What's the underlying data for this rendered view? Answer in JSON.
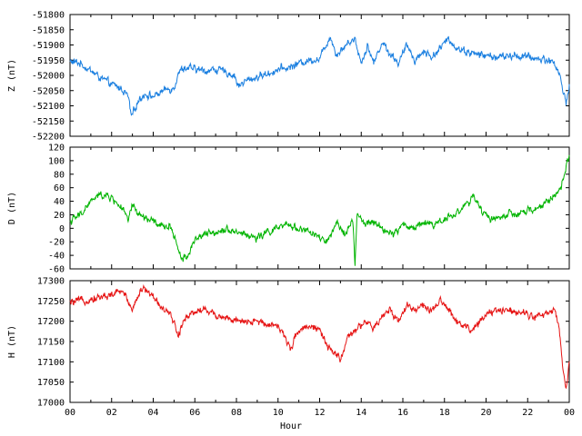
{
  "chart_data": [
    {
      "type": "line",
      "ylabel": "Z (nT)",
      "color": "#1a7fe0",
      "ylim": [
        -52200,
        -51800
      ],
      "yticks": [
        -52200,
        -52150,
        -52100,
        -52050,
        -52000,
        -51950,
        -51900,
        -51850,
        -51800
      ],
      "xlim": [
        0,
        24
      ],
      "x": [
        0,
        0.5,
        1,
        1.5,
        2,
        2.5,
        2.8,
        2.95,
        3.05,
        3.3,
        3.6,
        4,
        4.5,
        5,
        5.2,
        5.5,
        6,
        6.5,
        7,
        7.5,
        7.9,
        8.1,
        8.4,
        9,
        9.5,
        10,
        10.5,
        11,
        11.5,
        12,
        12.3,
        12.5,
        12.8,
        13,
        13.4,
        13.7,
        14,
        14.3,
        14.6,
        15,
        15.4,
        15.8,
        16.2,
        16.6,
        17,
        17.4,
        17.8,
        18.2,
        18.6,
        19,
        19.5,
        20,
        20.5,
        21,
        21.5,
        22,
        22.5,
        23,
        23.3,
        23.5,
        23.7,
        23.85,
        24
      ],
      "y": [
        -51955,
        -51960,
        -51985,
        -52010,
        -52030,
        -52045,
        -52070,
        -52140,
        -52120,
        -52080,
        -52060,
        -52070,
        -52050,
        -52040,
        -51990,
        -51975,
        -51980,
        -51985,
        -51980,
        -51990,
        -52000,
        -52035,
        -52020,
        -52005,
        -51995,
        -51980,
        -51975,
        -51960,
        -51950,
        -51945,
        -51900,
        -51870,
        -51930,
        -51920,
        -51890,
        -51880,
        -51960,
        -51900,
        -51960,
        -51890,
        -51930,
        -51960,
        -51900,
        -51950,
        -51920,
        -51940,
        -51910,
        -51880,
        -51910,
        -51920,
        -51930,
        -51935,
        -51940,
        -51938,
        -51935,
        -51940,
        -51945,
        -51950,
        -51960,
        -51990,
        -52050,
        -52090,
        -52030
      ]
    },
    {
      "type": "line",
      "ylabel": "D (nT)",
      "color": "#00b400",
      "ylim": [
        -60,
        120
      ],
      "yticks": [
        -60,
        -40,
        -20,
        0,
        20,
        40,
        60,
        80,
        100,
        120
      ],
      "xlim": [
        0,
        24
      ],
      "x": [
        0,
        0.5,
        1,
        1.5,
        2,
        2.5,
        2.8,
        3,
        3.3,
        3.6,
        4,
        4.5,
        4.8,
        5,
        5.3,
        5.6,
        6,
        6.5,
        7,
        7.5,
        8,
        8.5,
        9,
        9.5,
        10,
        10.5,
        11,
        11.5,
        12,
        12.4,
        12.8,
        13.2,
        13.6,
        13.7,
        13.8,
        14.2,
        14.5,
        15,
        15.5,
        16,
        16.5,
        17,
        17.5,
        18,
        18.5,
        19,
        19.4,
        19.8,
        20.2,
        20.6,
        21,
        21.5,
        22,
        22.5,
        23,
        23.3,
        23.6,
        23.8,
        24
      ],
      "y": [
        10,
        20,
        40,
        50,
        45,
        30,
        10,
        35,
        20,
        15,
        10,
        0,
        5,
        -10,
        -40,
        -45,
        -15,
        -10,
        -5,
        0,
        -5,
        -10,
        -15,
        -5,
        0,
        5,
        0,
        -5,
        -15,
        -20,
        5,
        -5,
        10,
        -55,
        20,
        5,
        10,
        0,
        -10,
        5,
        0,
        10,
        5,
        15,
        20,
        35,
        45,
        25,
        15,
        15,
        20,
        20,
        25,
        30,
        40,
        50,
        60,
        80,
        110
      ]
    },
    {
      "type": "line",
      "ylabel": "H (nT)",
      "xlabel": "Hour",
      "color": "#e61414",
      "ylim": [
        17000,
        17300
      ],
      "yticks": [
        17000,
        17050,
        17100,
        17150,
        17200,
        17250,
        17300
      ],
      "xlim": [
        0,
        24
      ],
      "xticks": [
        "00",
        "02",
        "04",
        "06",
        "08",
        "10",
        "12",
        "14",
        "16",
        "18",
        "20",
        "22",
        "00"
      ],
      "x": [
        0,
        0.5,
        1,
        1.5,
        2,
        2.5,
        2.8,
        3,
        3.3,
        3.6,
        4,
        4.5,
        5,
        5.2,
        5.5,
        6,
        6.5,
        7,
        7.5,
        8,
        8.5,
        9,
        9.5,
        10,
        10.3,
        10.6,
        11,
        11.5,
        12,
        12.3,
        12.6,
        13,
        13.4,
        13.8,
        14.2,
        14.6,
        15,
        15.4,
        15.8,
        16.2,
        16.6,
        17,
        17.4,
        17.8,
        18.2,
        18.6,
        19,
        19.4,
        19.8,
        20.2,
        20.6,
        21,
        21.5,
        22,
        22.5,
        23,
        23.3,
        23.5,
        23.7,
        23.85,
        24
      ],
      "y": [
        17245,
        17250,
        17255,
        17260,
        17265,
        17275,
        17250,
        17230,
        17270,
        17280,
        17260,
        17230,
        17200,
        17160,
        17210,
        17225,
        17230,
        17215,
        17210,
        17200,
        17195,
        17200,
        17195,
        17190,
        17160,
        17135,
        17180,
        17190,
        17180,
        17140,
        17125,
        17110,
        17160,
        17180,
        17200,
        17180,
        17210,
        17230,
        17200,
        17240,
        17230,
        17240,
        17220,
        17250,
        17230,
        17200,
        17190,
        17175,
        17210,
        17220,
        17225,
        17230,
        17225,
        17220,
        17210,
        17220,
        17230,
        17190,
        17080,
        17035,
        17100
      ]
    }
  ]
}
